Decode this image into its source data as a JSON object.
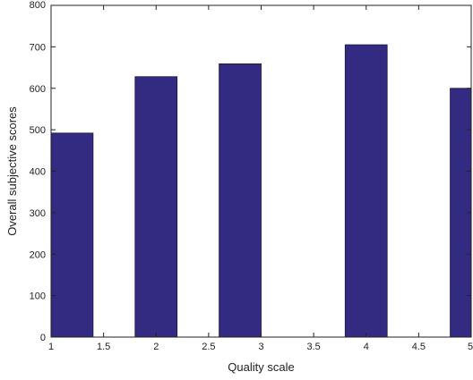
{
  "chart_data": {
    "type": "bar",
    "xlabel": "Quality scale",
    "ylabel": "Overall subjective scores",
    "xlim": [
      1,
      5
    ],
    "ylim": [
      0,
      800
    ],
    "xticks": [
      1,
      1.5,
      2,
      2.5,
      3,
      3.5,
      4,
      4.5,
      5
    ],
    "yticks": [
      0,
      100,
      200,
      300,
      400,
      500,
      600,
      700,
      800
    ],
    "xtick_labels": [
      "1",
      "1.5",
      "2",
      "2.5",
      "3",
      "3.5",
      "4",
      "4.5",
      "5"
    ],
    "ytick_labels": [
      "0",
      "100",
      "200",
      "300",
      "400",
      "500",
      "600",
      "700",
      "800"
    ],
    "x": [
      1.2,
      2,
      2.8,
      4,
      5
    ],
    "values": [
      492,
      628,
      659,
      705,
      600
    ],
    "bar_width": 0.4,
    "bar_color": "#332b82",
    "grid": false
  }
}
